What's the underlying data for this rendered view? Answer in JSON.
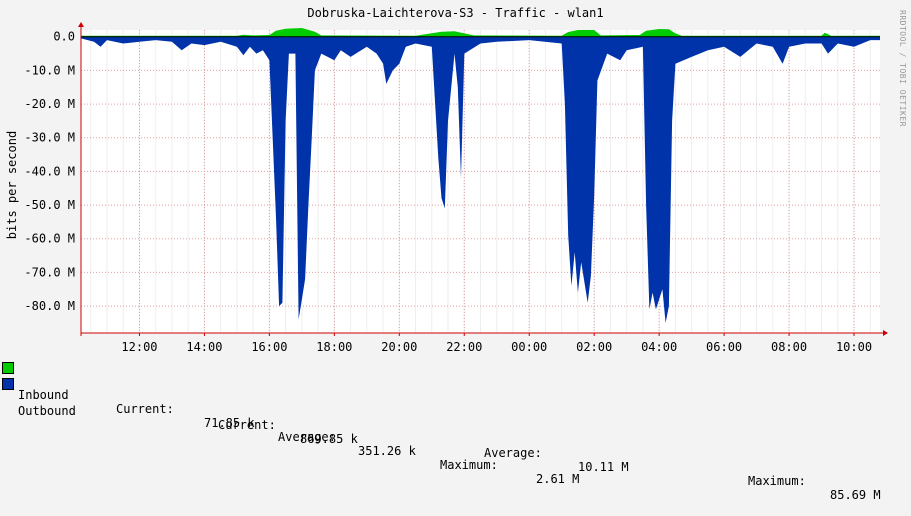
{
  "chart_data": {
    "type": "area",
    "title": "Dobruska-Laichterova-S3 - Traffic - wlan1",
    "ylabel": "bits per second",
    "watermark": "RRDTOOL / TOBI OETIKER",
    "y_ticks": [
      "0.0",
      "-10.0 M",
      "-20.0 M",
      "-30.0 M",
      "-40.0 M",
      "-50.0 M",
      "-60.0 M",
      "-70.0 M",
      "-80.0 M"
    ],
    "ylim": [
      -88,
      2
    ],
    "x_ticks": [
      "12:00",
      "14:00",
      "16:00",
      "18:00",
      "20:00",
      "22:00",
      "00:00",
      "02:00",
      "04:00",
      "06:00",
      "08:00",
      "10:00"
    ],
    "x_hours": [
      12,
      14,
      16,
      18,
      20,
      22,
      24,
      26,
      28,
      30,
      32,
      34
    ],
    "xlim": [
      10.2,
      34.8
    ],
    "grid": true,
    "colors": {
      "inbound": "#00cc00",
      "outbound": "#0033aa",
      "grid": "#e0a0a0",
      "axis": "#cc0000"
    },
    "series": [
      {
        "name": "Inbound",
        "points": [
          [
            10.2,
            0.3
          ],
          [
            15.0,
            0.3
          ],
          [
            15.2,
            0.6
          ],
          [
            15.5,
            0.4
          ],
          [
            16.0,
            0.5
          ],
          [
            16.2,
            1.8
          ],
          [
            16.5,
            2.4
          ],
          [
            17.0,
            2.6
          ],
          [
            17.4,
            1.5
          ],
          [
            17.6,
            0.4
          ],
          [
            20.5,
            0.3
          ],
          [
            21.3,
            1.5
          ],
          [
            21.7,
            1.6
          ],
          [
            22.0,
            1.0
          ],
          [
            22.3,
            0.4
          ],
          [
            25.0,
            0.3
          ],
          [
            25.2,
            1.4
          ],
          [
            25.5,
            2.0
          ],
          [
            26.0,
            2.0
          ],
          [
            26.2,
            0.4
          ],
          [
            27.4,
            0.5
          ],
          [
            27.6,
            1.8
          ],
          [
            28.0,
            2.3
          ],
          [
            28.3,
            2.2
          ],
          [
            28.5,
            1.0
          ],
          [
            28.7,
            0.3
          ],
          [
            33.0,
            0.3
          ],
          [
            33.1,
            1.2
          ],
          [
            33.3,
            0.3
          ],
          [
            34.8,
            0.3
          ]
        ]
      },
      {
        "name": "Outbound",
        "points": [
          [
            10.2,
            -0.5
          ],
          [
            10.6,
            -1.5
          ],
          [
            10.8,
            -3.0
          ],
          [
            11.0,
            -1.0
          ],
          [
            11.5,
            -2.0
          ],
          [
            12.0,
            -1.5
          ],
          [
            12.5,
            -1.0
          ],
          [
            13.0,
            -1.5
          ],
          [
            13.3,
            -4.0
          ],
          [
            13.6,
            -2.0
          ],
          [
            14.0,
            -2.5
          ],
          [
            14.5,
            -1.5
          ],
          [
            15.0,
            -3.0
          ],
          [
            15.2,
            -5.5
          ],
          [
            15.4,
            -3.0
          ],
          [
            15.6,
            -5.0
          ],
          [
            15.8,
            -4.0
          ],
          [
            16.0,
            -7.0
          ],
          [
            16.2,
            -53.0
          ],
          [
            16.3,
            -80.0
          ],
          [
            16.4,
            -79.0
          ],
          [
            16.5,
            -25.0
          ],
          [
            16.6,
            -5.0
          ],
          [
            16.8,
            -5.0
          ],
          [
            16.9,
            -84.0
          ],
          [
            17.0,
            -78.0
          ],
          [
            17.1,
            -72.0
          ],
          [
            17.2,
            -50.0
          ],
          [
            17.3,
            -31.0
          ],
          [
            17.4,
            -10.0
          ],
          [
            17.6,
            -5.0
          ],
          [
            18.0,
            -7.0
          ],
          [
            18.2,
            -4.0
          ],
          [
            18.5,
            -6.0
          ],
          [
            19.0,
            -3.0
          ],
          [
            19.3,
            -5.0
          ],
          [
            19.5,
            -8.0
          ],
          [
            19.6,
            -14.0
          ],
          [
            19.8,
            -10.0
          ],
          [
            20.0,
            -8.0
          ],
          [
            20.2,
            -3.0
          ],
          [
            20.5,
            -2.0
          ],
          [
            21.0,
            -3.0
          ],
          [
            21.2,
            -36.0
          ],
          [
            21.3,
            -48.0
          ],
          [
            21.4,
            -51.0
          ],
          [
            21.5,
            -25.0
          ],
          [
            21.7,
            -5.0
          ],
          [
            21.8,
            -15.0
          ],
          [
            21.9,
            -42.0
          ],
          [
            22.0,
            -5.0
          ],
          [
            22.5,
            -2.0
          ],
          [
            23.0,
            -1.5
          ],
          [
            24.0,
            -1.0
          ],
          [
            25.0,
            -2.0
          ],
          [
            25.1,
            -20.0
          ],
          [
            25.2,
            -59.0
          ],
          [
            25.3,
            -74.0
          ],
          [
            25.4,
            -64.0
          ],
          [
            25.5,
            -76.0
          ],
          [
            25.6,
            -67.0
          ],
          [
            25.8,
            -79.0
          ],
          [
            25.9,
            -71.0
          ],
          [
            26.0,
            -47.0
          ],
          [
            26.1,
            -13.0
          ],
          [
            26.4,
            -5.0
          ],
          [
            26.8,
            -7.0
          ],
          [
            27.0,
            -4.0
          ],
          [
            27.5,
            -3.0
          ],
          [
            27.6,
            -50.0
          ],
          [
            27.7,
            -81.0
          ],
          [
            27.8,
            -76.0
          ],
          [
            27.9,
            -81.0
          ],
          [
            28.1,
            -75.0
          ],
          [
            28.2,
            -85.0
          ],
          [
            28.3,
            -80.0
          ],
          [
            28.4,
            -25.0
          ],
          [
            28.5,
            -8.0
          ],
          [
            29.0,
            -6.0
          ],
          [
            29.5,
            -4.0
          ],
          [
            30.0,
            -3.0
          ],
          [
            30.5,
            -6.0
          ],
          [
            31.0,
            -2.0
          ],
          [
            31.5,
            -3.0
          ],
          [
            31.8,
            -8.0
          ],
          [
            32.0,
            -3.0
          ],
          [
            32.5,
            -2.0
          ],
          [
            33.0,
            -2.0
          ],
          [
            33.2,
            -5.0
          ],
          [
            33.5,
            -2.0
          ],
          [
            34.0,
            -3.0
          ],
          [
            34.5,
            -1.0
          ],
          [
            34.8,
            -1.0
          ]
        ]
      }
    ]
  },
  "legend": {
    "inbound": {
      "label": "Inbound",
      "current_label": "Current:",
      "current": "71.85 k",
      "average_label": "Average:",
      "average": "351.26 k",
      "maximum_label": "Maximum:",
      "maximum": "2.61 M"
    },
    "outbound": {
      "label": "Outbound",
      "current_label": "Current:",
      "current": "869.85 k",
      "average_label": "Average:",
      "average": "10.11 M",
      "maximum_label": "Maximum:",
      "maximum": "85.69 M"
    }
  }
}
